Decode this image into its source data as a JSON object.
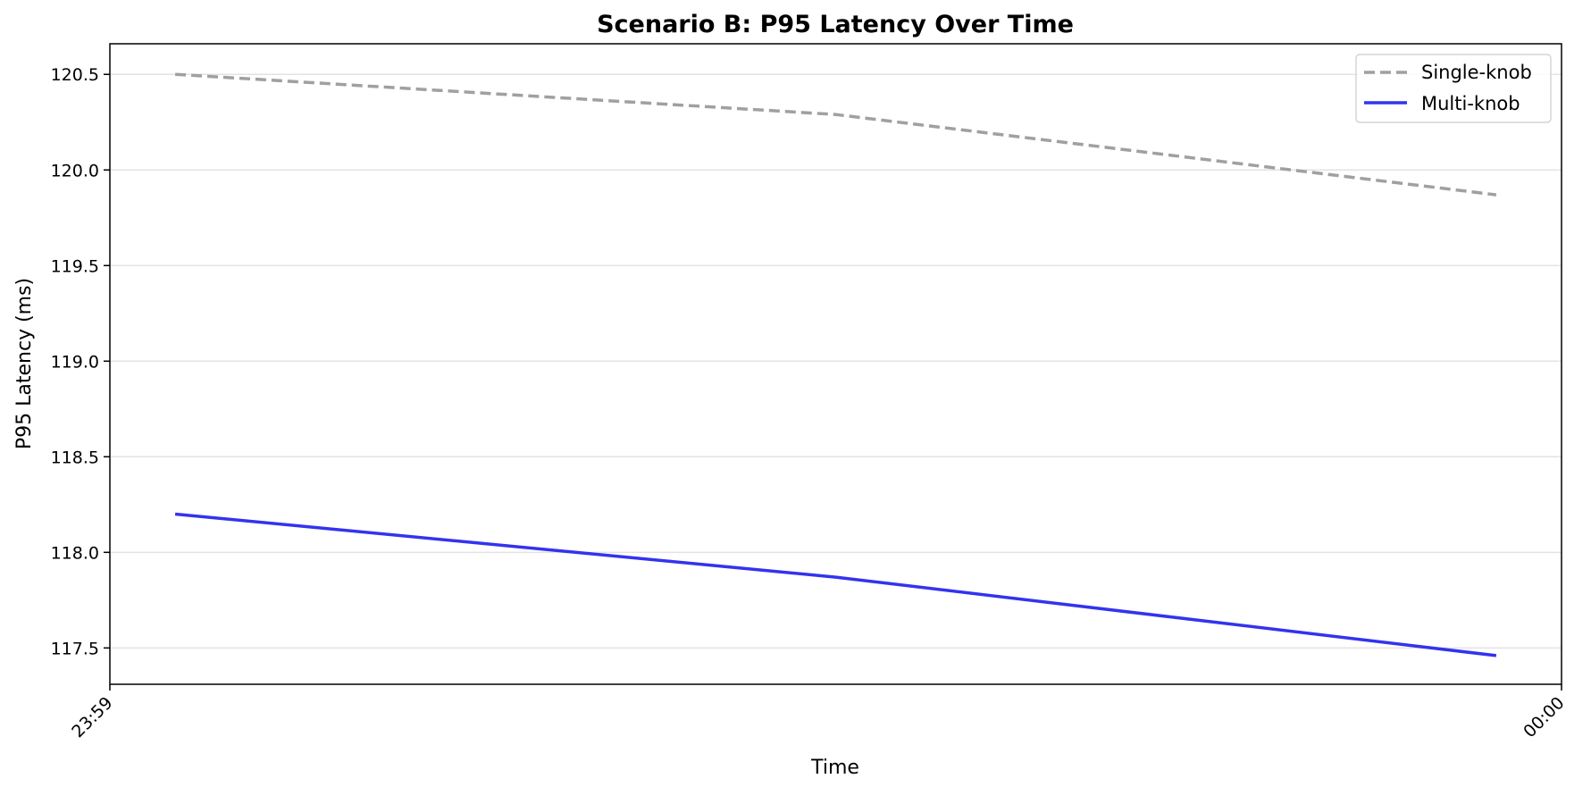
{
  "chart_data": {
    "type": "line",
    "title": "Scenario B: P95 Latency Over Time",
    "xlabel": "Time",
    "ylabel": "P95 Latency (ms)",
    "x_tick_labels": [
      "23:59",
      "00:00"
    ],
    "x_range_fraction": [
      0.0,
      1.0
    ],
    "y_ticks": [
      117.5,
      118.0,
      118.5,
      119.0,
      119.5,
      120.0,
      120.5
    ],
    "y_tick_labels": [
      "117.5",
      "118.0",
      "118.5",
      "119.0",
      "119.5",
      "120.0",
      "120.5"
    ],
    "ylim": [
      117.31,
      120.66
    ],
    "grid": "horizontal",
    "legend_position": "top-right",
    "x_fraction": [
      0.045,
      0.5,
      0.955
    ],
    "series": [
      {
        "name": "Single-knob",
        "color": "#a0a0a0",
        "style": "dashed",
        "values": [
          120.5,
          120.29,
          119.87
        ]
      },
      {
        "name": "Multi-knob",
        "color": "#3333ee",
        "style": "solid",
        "values": [
          118.2,
          117.87,
          117.46
        ]
      }
    ]
  }
}
